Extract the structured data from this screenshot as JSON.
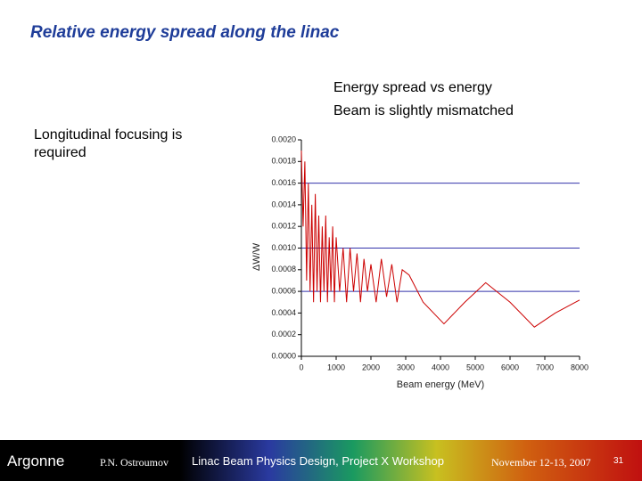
{
  "header": {
    "title": "Relative energy spread along the linac"
  },
  "notes": {
    "right": [
      "Energy spread vs energy",
      "Beam is slightly mismatched"
    ],
    "left": "Longitudinal focusing is required"
  },
  "chart_data": {
    "type": "line",
    "x_label": "Beam energy (MeV)",
    "y_label": "ΔW/W",
    "x": [
      0,
      50,
      100,
      150,
      200,
      250,
      300,
      350,
      400,
      450,
      500,
      550,
      600,
      650,
      700,
      750,
      800,
      850,
      900,
      950,
      1000,
      1100,
      1200,
      1300,
      1400,
      1500,
      1600,
      1700,
      1800,
      1900,
      2000,
      2150,
      2300,
      2450,
      2600,
      2750,
      2900,
      3100,
      3500,
      4100,
      4700,
      5300,
      6000,
      6700,
      7300,
      8000
    ],
    "series": [
      {
        "color": "#cc0000",
        "values": [
          0.0019,
          0.0012,
          0.0018,
          0.0007,
          0.0016,
          0.0006,
          0.0014,
          0.0005,
          0.0015,
          0.0006,
          0.0013,
          0.0005,
          0.0012,
          0.0006,
          0.0013,
          0.0005,
          0.0011,
          0.0006,
          0.0012,
          0.0005,
          0.0011,
          0.0006,
          0.001,
          0.0005,
          0.001,
          0.0006,
          0.00095,
          0.0005,
          0.0009,
          0.0006,
          0.00085,
          0.0005,
          0.0009,
          0.00055,
          0.00085,
          0.0005,
          0.0008,
          0.00075,
          0.0005,
          0.0003,
          0.0005,
          0.00068,
          0.0005,
          0.00027,
          0.0004,
          0.00052
        ]
      }
    ],
    "xlim": [
      0,
      8000
    ],
    "xticks": [
      0,
      1000,
      2000,
      3000,
      4000,
      5000,
      6000,
      7000,
      8000
    ],
    "ylim": [
      0,
      0.002
    ],
    "yticks": [
      {
        "value": 0,
        "label": "0.0000"
      },
      {
        "value": 0.0002,
        "label": "0.0002"
      },
      {
        "value": 0.0004,
        "label": "0.0004"
      },
      {
        "value": 0.0006,
        "label": "0.0006"
      },
      {
        "value": 0.0008,
        "label": "0.0008"
      },
      {
        "value": 0.001,
        "label": "0.0010"
      },
      {
        "value": 0.0012,
        "label": "0.0012"
      },
      {
        "value": 0.0014,
        "label": "0.0014"
      },
      {
        "value": 0.0016,
        "label": "0.0016"
      },
      {
        "value": 0.0018,
        "label": "0.0018"
      },
      {
        "value": 0.002,
        "label": "0.0020"
      }
    ],
    "reference_lines": [
      0.0016,
      0.001,
      0.0006
    ],
    "reference_color": "#3333aa"
  },
  "footer": {
    "logo": "Argonne",
    "author": "P.N. Ostroumov",
    "event": "Linac Beam Physics Design, Project X Workshop",
    "date": "November 12-13, 2007",
    "page": "31"
  }
}
